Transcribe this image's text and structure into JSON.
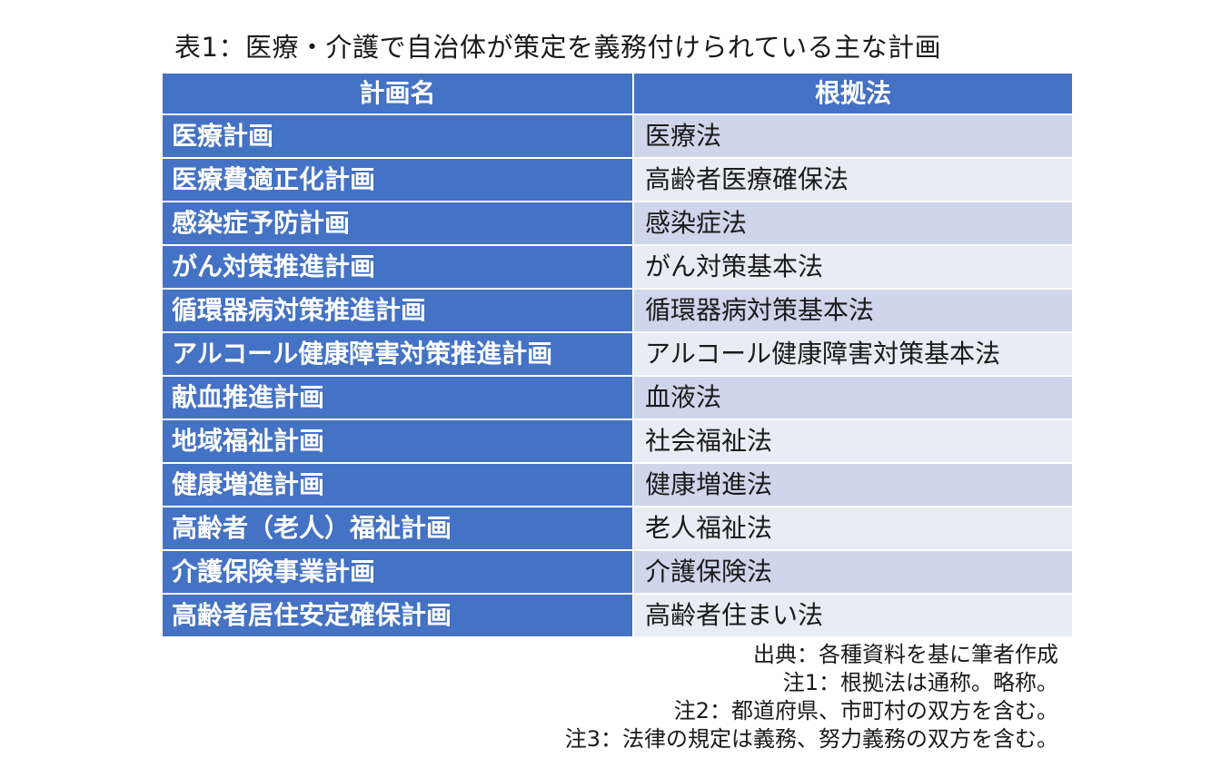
{
  "title": "表1：医療・介護で自治体が策定を義務付けられている主な計画",
  "table": {
    "headers": [
      "計画名",
      "根拠法"
    ],
    "rows": [
      {
        "plan": "医療計画",
        "law": "医療法"
      },
      {
        "plan": "医療費適正化計画",
        "law": "高齢者医療確保法"
      },
      {
        "plan": "感染症予防計画",
        "law": "感染症法"
      },
      {
        "plan": "がん対策推進計画",
        "law": "がん対策基本法"
      },
      {
        "plan": "循環器病対策推進計画",
        "law": "循環器病対策基本法"
      },
      {
        "plan": "アルコール健康障害対策推進計画",
        "law": "アルコール健康障害対策基本法"
      },
      {
        "plan": "献血推進計画",
        "law": "血液法"
      },
      {
        "plan": "地域福祉計画",
        "law": "社会福祉法"
      },
      {
        "plan": "健康増進計画",
        "law": "健康増進法"
      },
      {
        "plan": "高齢者（老人）福祉計画",
        "law": "老人福祉法"
      },
      {
        "plan": "介護保険事業計画",
        "law": "介護保険法"
      },
      {
        "plan": "高齢者居住安定確保計画",
        "law": "高齢者住まい法"
      }
    ]
  },
  "notes": [
    "出典：各種資料を基に筆者作成",
    "注1：根拠法は通称。略称。",
    "注2：都道府県、市町村の双方を含む。",
    "注3：法律の規定は義務、努力義務の双方を含む。"
  ]
}
